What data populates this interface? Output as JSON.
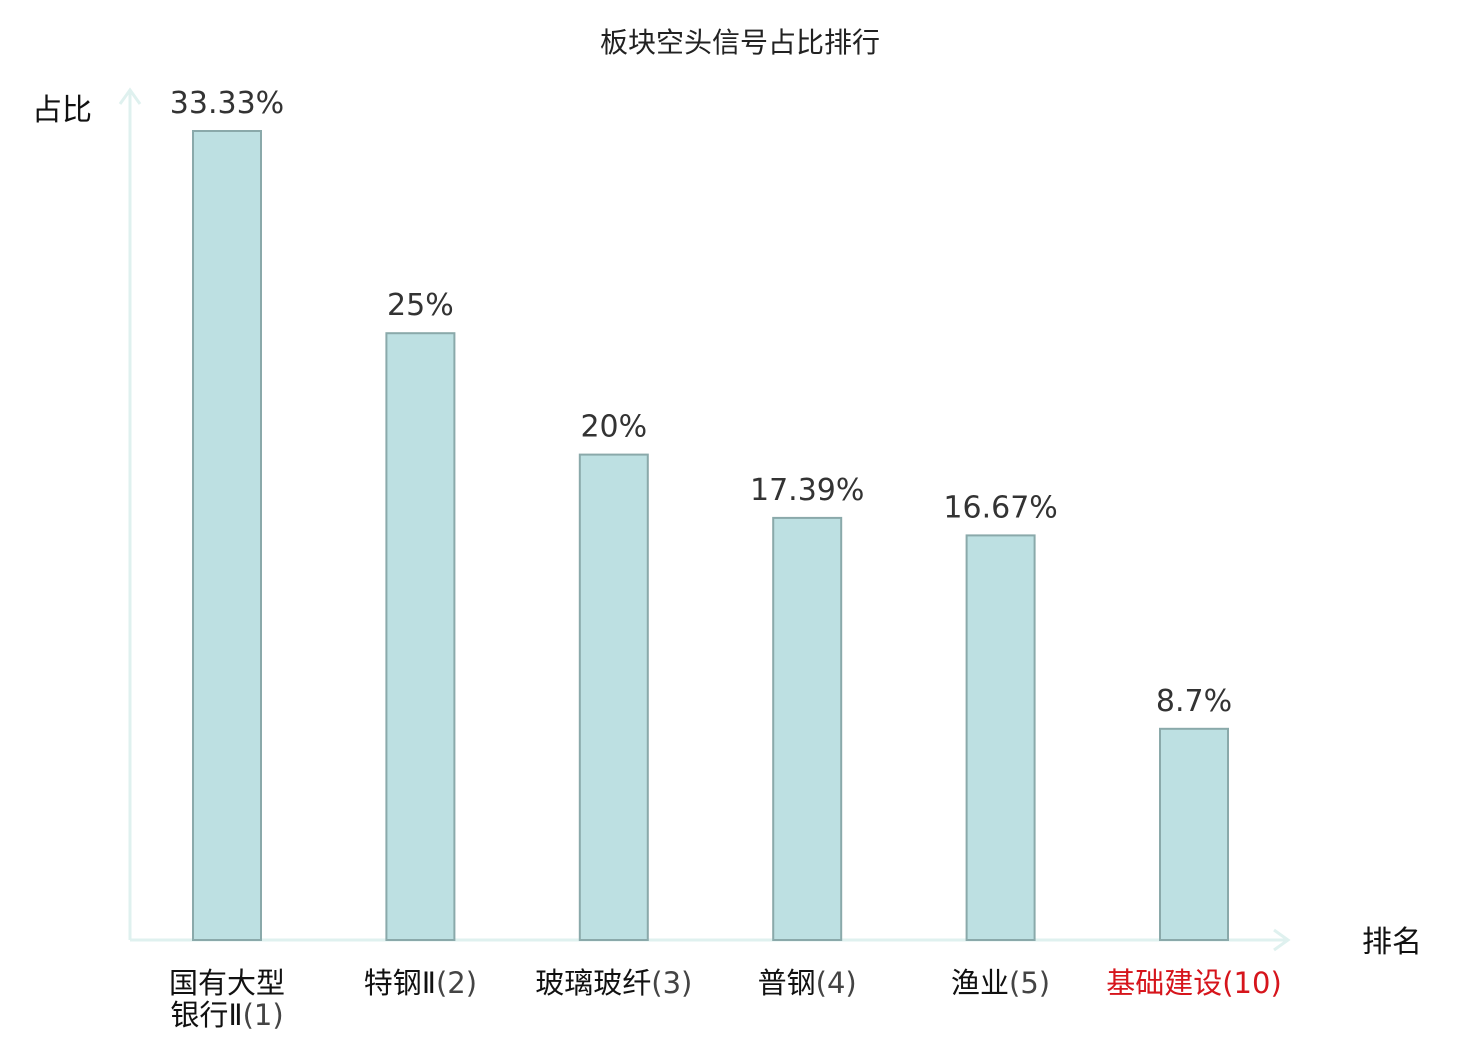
{
  "chart_data": {
    "type": "bar",
    "title": "板块空头信号占比排行",
    "ylabel": "占比",
    "xlabel": "排名",
    "ylim": [
      0,
      33.33
    ],
    "grid": false,
    "categories": [
      {
        "name": [
          "国有大型",
          "银行Ⅱ"
        ],
        "rank": "(1)",
        "highlight": false
      },
      {
        "name": [
          "特钢Ⅱ"
        ],
        "rank": "(2)",
        "highlight": false
      },
      {
        "name": [
          "玻璃玻纤"
        ],
        "rank": "(3)",
        "highlight": false
      },
      {
        "name": [
          "普钢"
        ],
        "rank": "(4)",
        "highlight": false
      },
      {
        "name": [
          "渔业"
        ],
        "rank": "(5)",
        "highlight": false
      },
      {
        "name": [
          "基础建设"
        ],
        "rank": "(10)",
        "highlight": true
      }
    ],
    "values": [
      33.33,
      25,
      20,
      17.39,
      16.67,
      8.7
    ],
    "value_labels": [
      "33.33%",
      "25%",
      "20%",
      "17.39%",
      "16.67%",
      "8.7%"
    ],
    "colors": {
      "bar_fill": "#bde0e2",
      "bar_stroke": "#8aa9aa",
      "axis": "#dff1ef",
      "highlight": "#d6151c"
    }
  }
}
